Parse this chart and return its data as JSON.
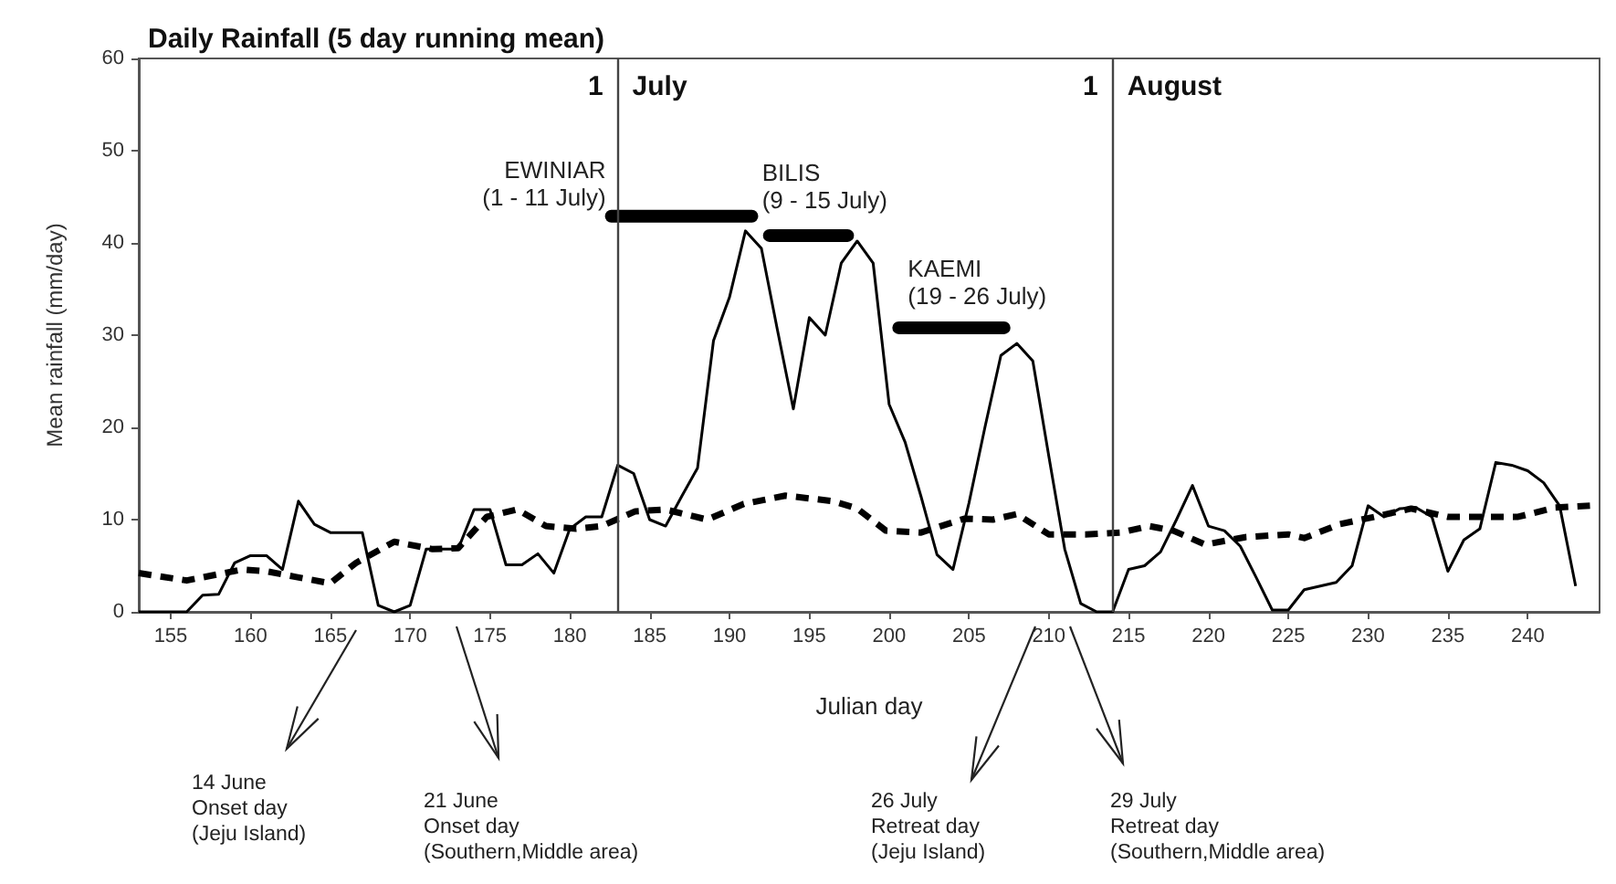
{
  "chart_data": {
    "type": "line",
    "title": "Daily Rainfall (5 day running mean)",
    "xlabel": "Julian day",
    "ylabel": "Mean rainfall (mm/day)",
    "xlim": [
      153,
      244.5
    ],
    "xticks": [
      155,
      160,
      165,
      170,
      175,
      180,
      185,
      190,
      195,
      200,
      205,
      210,
      215,
      220,
      225,
      230,
      235,
      240
    ],
    "ylim": [
      0,
      60
    ],
    "yticks": [
      0,
      10,
      20,
      30,
      40,
      50,
      60
    ],
    "marker": "none",
    "series": [
      {
        "color": "#000000",
        "line_style": "solid",
        "x": [
          153,
          154,
          155,
          156,
          157,
          158,
          159,
          160,
          161,
          162,
          163,
          164,
          165,
          166,
          167,
          168,
          169,
          170,
          171,
          172,
          173,
          174,
          175,
          176,
          177,
          178,
          179,
          180,
          181,
          182,
          183,
          184,
          185,
          186,
          187,
          188,
          189,
          190,
          191,
          192,
          193,
          194,
          195,
          196,
          197,
          198,
          199,
          200,
          201,
          202,
          203,
          204,
          205,
          206,
          207,
          208,
          209,
          210,
          211,
          212,
          213,
          214,
          215,
          216,
          217,
          218,
          219,
          220,
          221,
          222,
          223,
          224,
          225,
          226,
          227,
          228,
          229,
          230,
          231,
          232,
          233,
          234,
          235,
          236,
          237,
          238,
          239,
          240,
          241,
          242,
          243
        ],
        "values": [
          0,
          0,
          0,
          0,
          1.8,
          1.9,
          5.3,
          6.1,
          6.1,
          4.6,
          12.0,
          9.5,
          8.6,
          8.6,
          8.6,
          0.7,
          0,
          0.7,
          6.8,
          6.8,
          6.8,
          11.1,
          11.1,
          5.1,
          5.1,
          6.3,
          4.2,
          9.0,
          10.3,
          10.3,
          15.9,
          15.0,
          10.0,
          9.3,
          12.5,
          15.6,
          29.4,
          34.1,
          41.3,
          39.4,
          30.6,
          22.0,
          31.9,
          30.0,
          37.8,
          40.2,
          37.8,
          22.5,
          18.4,
          12.5,
          6.2,
          4.6,
          11.8,
          20.0,
          27.8,
          29.1,
          27.2,
          16.9,
          6.8,
          0.9,
          0,
          0,
          4.6,
          5.0,
          6.5,
          10.0,
          13.7,
          9.3,
          8.8,
          7.1,
          3.7,
          0.2,
          0.2,
          2.4,
          2.8,
          3.2,
          5.0,
          11.5,
          10.3,
          11.2,
          11.3,
          10.3,
          4.4,
          7.8,
          9.0,
          16.2,
          15.9,
          15.3,
          14.0,
          11.5,
          2.8
        ]
      },
      {
        "color": "#000000",
        "line_style": "dashed",
        "x": [
          153,
          156,
          159.5,
          161,
          162.8,
          165,
          166.6,
          169,
          171.4,
          173,
          174.8,
          176.7,
          178.5,
          180.4,
          182,
          184.1,
          186,
          188.6,
          190.9,
          193.5,
          196.5,
          198,
          199.8,
          202,
          204.7,
          206.5,
          208,
          210,
          212.3,
          214.5,
          216.3,
          217.8,
          219.8,
          222.3,
          225,
          226,
          228.2,
          230.4,
          232.7,
          235,
          237.2,
          239.4,
          241.7,
          243.9
        ],
        "values": [
          4.2,
          3.4,
          4.6,
          4.4,
          3.8,
          3.1,
          5.3,
          7.6,
          6.8,
          6.9,
          10.3,
          11.1,
          9.3,
          9.0,
          9.3,
          10.9,
          11.1,
          10.0,
          11.7,
          12.6,
          12.0,
          11.2,
          8.8,
          8.6,
          10.1,
          10.0,
          10.6,
          8.4,
          8.4,
          8.6,
          9.3,
          8.8,
          7.3,
          8.1,
          8.4,
          8.0,
          9.5,
          10.3,
          11.2,
          10.3,
          10.3,
          10.3,
          11.3,
          11.5
        ]
      },
      {
        "color": "#000000",
        "line_style": "solid",
        "x": [
          182.6,
          191.4
        ],
        "values": [
          42.9,
          42.9
        ]
      },
      {
        "color": "#000000",
        "line_style": "solid",
        "x": [
          192.5,
          197.4
        ],
        "values": [
          40.8,
          40.8
        ]
      },
      {
        "color": "#000000",
        "line_style": "solid",
        "x": [
          200.6,
          207.2
        ],
        "values": [
          30.8,
          30.8
        ]
      }
    ],
    "ref_lines": [
      {
        "axis": "x",
        "value": 183,
        "label": "1 July",
        "color": "#444444"
      },
      {
        "axis": "x",
        "value": 214,
        "label": "1 August",
        "color": "#444444"
      }
    ],
    "annotations": [
      {
        "text": "EWINIAR\n(1 - 11 July)",
        "x": 182.6,
        "y": 42.9
      },
      {
        "text": "BILIS\n(9 - 15 July)",
        "x": 192.5,
        "y": 40.8
      },
      {
        "text": "KAEMI\n(19 - 26 July)",
        "x": 200.6,
        "y": 30.8
      },
      "14 June\nOnset day\n(Jeju Island)",
      "21 June\nOnset day\n(Southern,Middle area)",
      "26 July\nRetreat day\n(Jeju Island)",
      "29 July\nRetreat day\n(Southern,Middle area)"
    ]
  }
}
